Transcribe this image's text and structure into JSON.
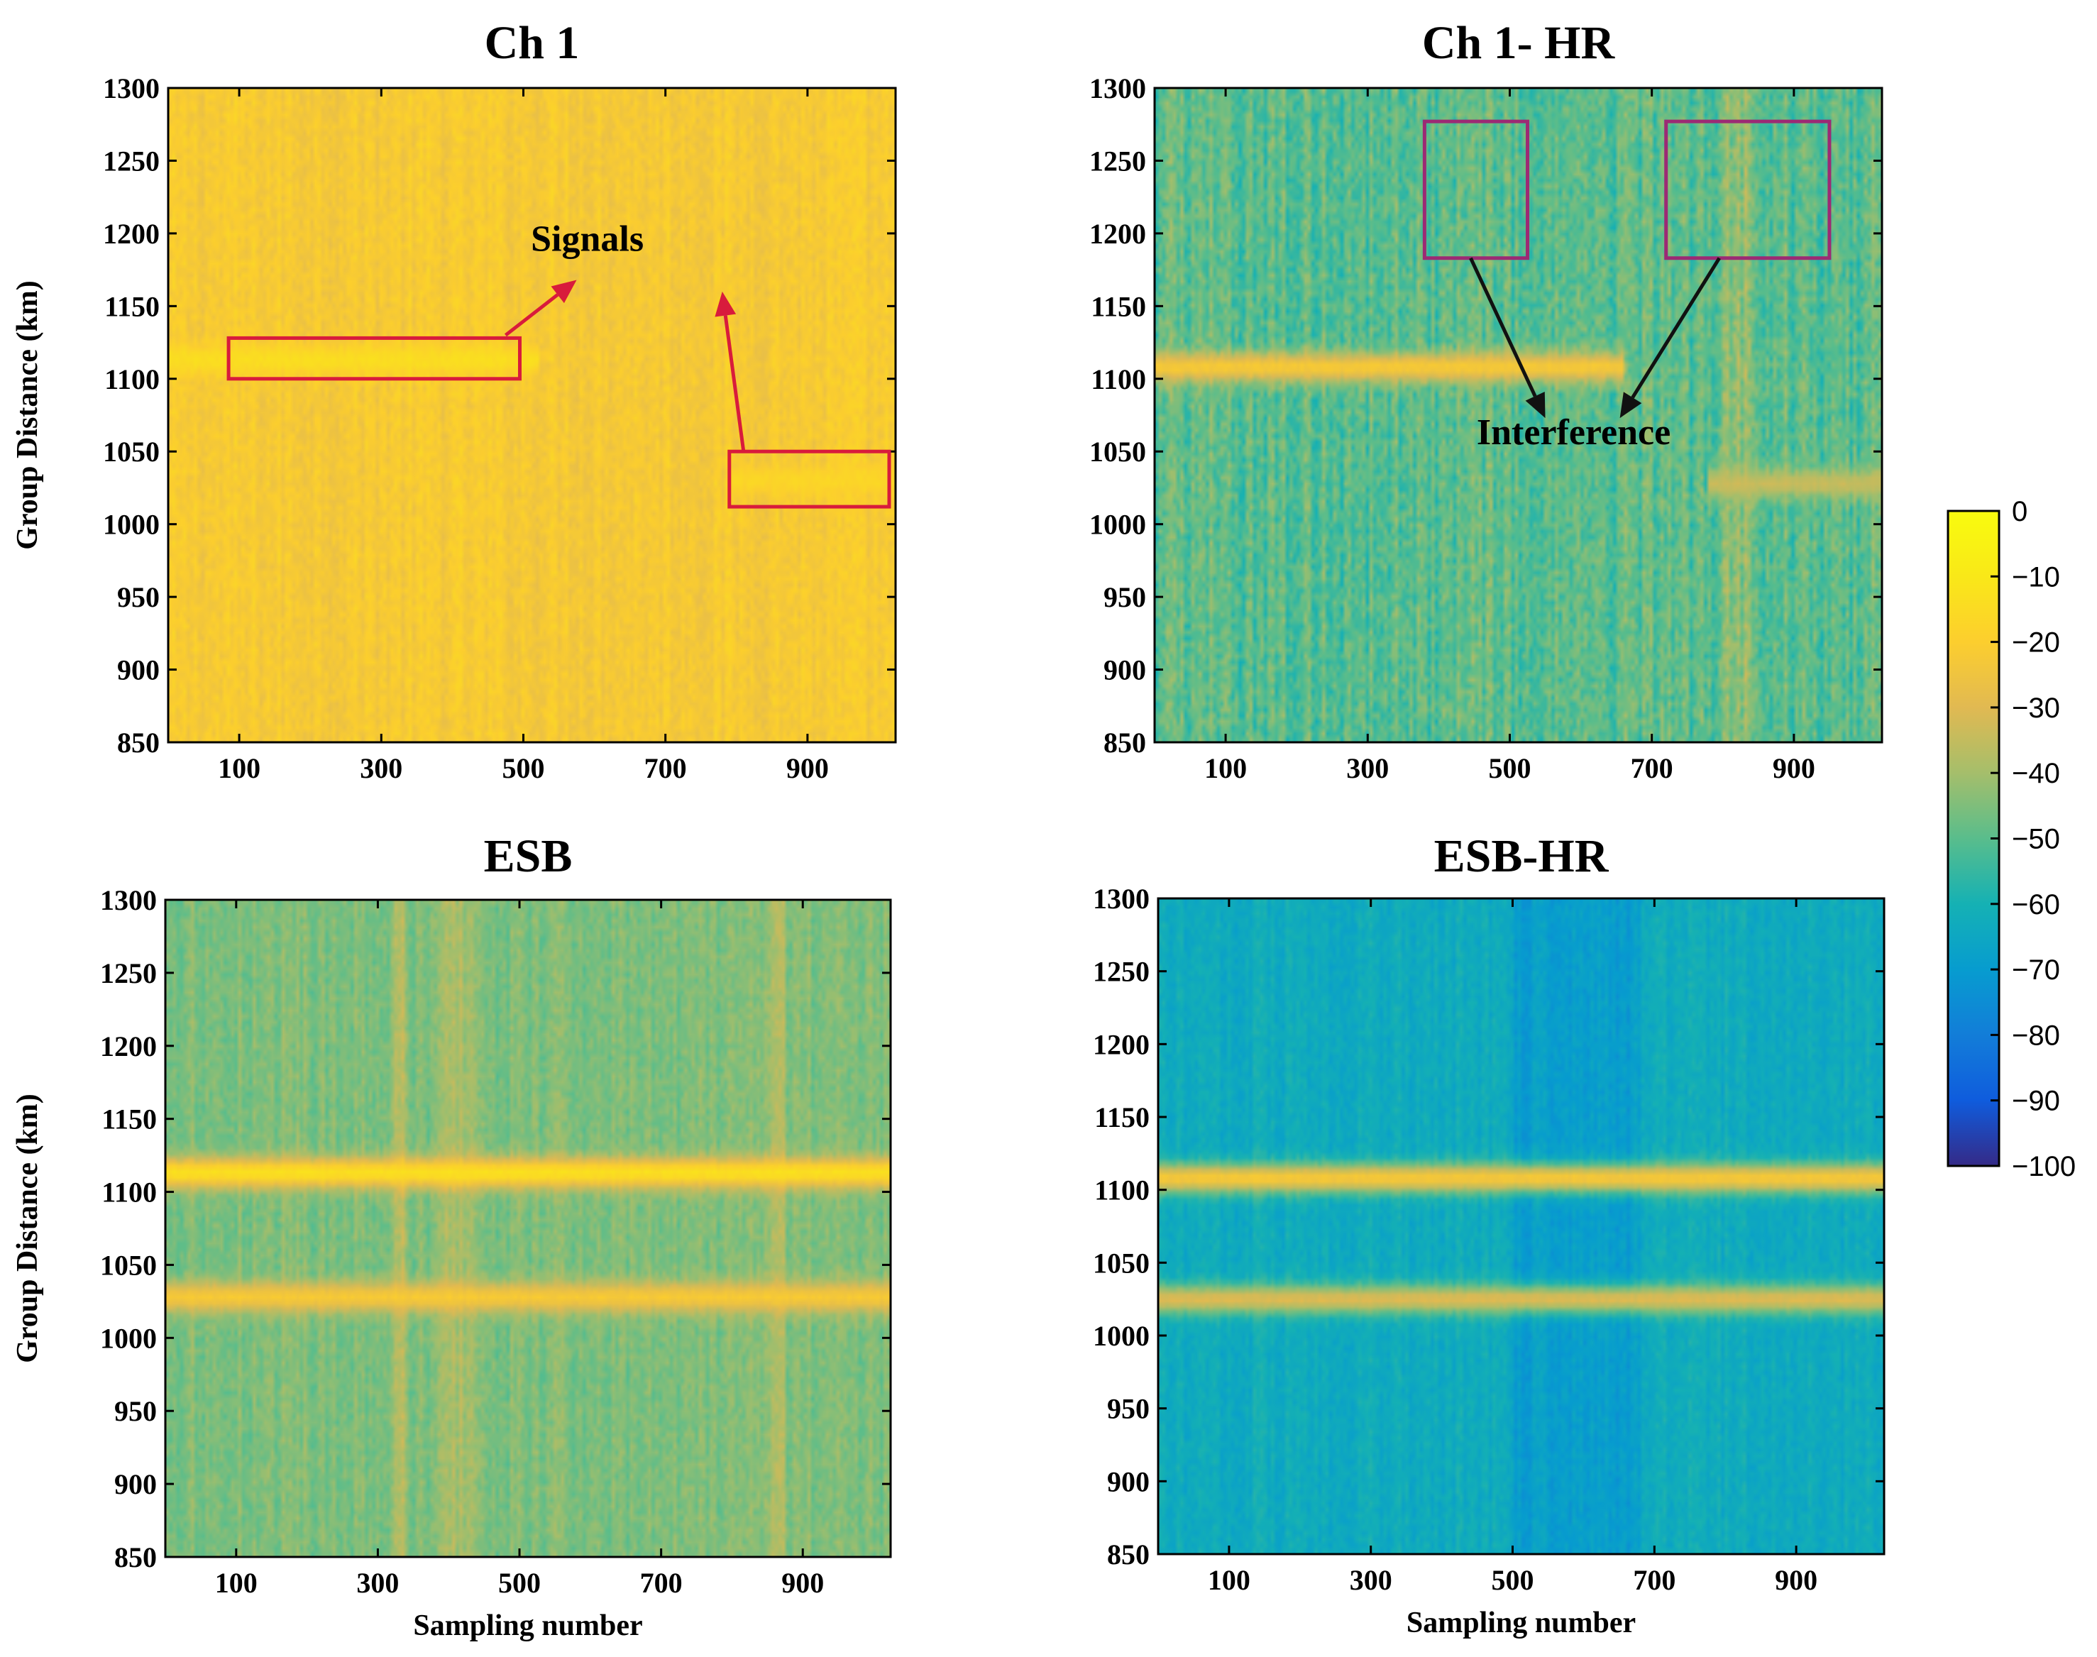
{
  "figure": {
    "colorbar": {
      "colormap": "parula",
      "range": [
        -100,
        0
      ],
      "ticks": [
        "0",
        "−10",
        "−20",
        "−30",
        "−40",
        "−50",
        "−60",
        "−70",
        "−80",
        "−90",
        "−100"
      ],
      "tick_values": [
        0,
        -10,
        -20,
        -30,
        -40,
        -50,
        -60,
        -70,
        -80,
        -90,
        -100
      ]
    }
  },
  "chart_data": [
    {
      "type": "heatmap",
      "id": "ch1",
      "title": "Ch 1",
      "xlabel": "",
      "ylabel": "Group Distance (km)",
      "xlim": [
        0,
        1024
      ],
      "ylim": [
        850,
        1300
      ],
      "xticks": [
        100,
        300,
        500,
        700,
        900
      ],
      "xtick_labels": [
        "100",
        "300",
        "500",
        "700",
        "900"
      ],
      "yticks": [
        850,
        900,
        950,
        1000,
        1050,
        1100,
        1150,
        1200,
        1250,
        1300
      ],
      "ytick_labels": [
        "850",
        "900",
        "950",
        "1000",
        "1050",
        "1100",
        "1150",
        "1200",
        "1250",
        "1300"
      ],
      "background_level": -22,
      "noise_level": 6,
      "signals": [
        {
          "distance": 1113,
          "from": 0,
          "to": 520,
          "level": -14
        },
        {
          "distance": 1030,
          "from": 790,
          "to": 1024,
          "level": -17
        }
      ],
      "boxes": [
        {
          "x0": 85,
          "x1": 495,
          "y0": 1100,
          "y1": 1128,
          "color": "#d81b3c"
        },
        {
          "x0": 790,
          "x1": 1015,
          "y0": 1012,
          "y1": 1050,
          "color": "#d81b3c"
        }
      ],
      "annotations": [
        {
          "text": "Signals",
          "x": 590,
          "y": 1188,
          "color": "#000000"
        }
      ],
      "arrows": [
        {
          "from": [
            475,
            1130
          ],
          "to": [
            575,
            1168
          ],
          "color": "#d81b3c"
        },
        {
          "from": [
            810,
            1050
          ],
          "to": [
            780,
            1160
          ],
          "color": "#d81b3c"
        }
      ]
    },
    {
      "type": "heatmap",
      "id": "ch1hr",
      "title": "Ch 1- HR",
      "xlabel": "",
      "ylabel": "",
      "xlim": [
        0,
        1024
      ],
      "ylim": [
        850,
        1300
      ],
      "xticks": [
        100,
        300,
        500,
        700,
        900
      ],
      "xtick_labels": [
        "100",
        "300",
        "500",
        "700",
        "900"
      ],
      "yticks": [
        850,
        900,
        950,
        1000,
        1050,
        1100,
        1150,
        1200,
        1250,
        1300
      ],
      "ytick_labels": [
        "850",
        "900",
        "950",
        "1000",
        "1050",
        "1100",
        "1150",
        "1200",
        "1250",
        "1300"
      ],
      "background_level": -50,
      "noise_level": 12,
      "signals": [
        {
          "distance": 1108,
          "from": 0,
          "to": 660,
          "level": -22
        },
        {
          "distance": 1028,
          "from": 780,
          "to": 1024,
          "level": -34
        }
      ],
      "boxes": [
        {
          "x0": 380,
          "x1": 525,
          "y0": 1183,
          "y1": 1277,
          "color": "#9c2a74"
        },
        {
          "x0": 720,
          "x1": 950,
          "y0": 1183,
          "y1": 1277,
          "color": "#9c2a74"
        }
      ],
      "annotations": [
        {
          "text": "Interference",
          "x": 590,
          "y": 1055,
          "color": "#000000"
        }
      ],
      "arrows": [
        {
          "from": [
            445,
            1183
          ],
          "to": [
            550,
            1073
          ],
          "color": "#111111"
        },
        {
          "from": [
            795,
            1183
          ],
          "to": [
            655,
            1073
          ],
          "color": "#111111"
        }
      ]
    },
    {
      "type": "heatmap",
      "id": "esb",
      "title": "ESB",
      "xlabel": "Sampling number",
      "ylabel": "Group Distance (km)",
      "xlim": [
        0,
        1024
      ],
      "ylim": [
        850,
        1300
      ],
      "xticks": [
        100,
        300,
        500,
        700,
        900
      ],
      "xtick_labels": [
        "100",
        "300",
        "500",
        "700",
        "900"
      ],
      "yticks": [
        850,
        900,
        950,
        1000,
        1050,
        1100,
        1150,
        1200,
        1250,
        1300
      ],
      "ytick_labels": [
        "850",
        "900",
        "950",
        "1000",
        "1050",
        "1100",
        "1150",
        "1200",
        "1250",
        "1300"
      ],
      "background_level": -45,
      "noise_level": 7,
      "signals": [
        {
          "distance": 1113,
          "from": 0,
          "to": 1024,
          "level": -13
        },
        {
          "distance": 1028,
          "from": 0,
          "to": 1024,
          "level": -22
        }
      ],
      "boxes": [],
      "annotations": [],
      "arrows": []
    },
    {
      "type": "heatmap",
      "id": "esbhr",
      "title": "ESB-HR",
      "xlabel": "Sampling number",
      "ylabel": "",
      "xlim": [
        0,
        1024
      ],
      "ylim": [
        850,
        1300
      ],
      "xticks": [
        100,
        300,
        500,
        700,
        900
      ],
      "xtick_labels": [
        "100",
        "300",
        "500",
        "700",
        "900"
      ],
      "yticks": [
        850,
        900,
        950,
        1000,
        1050,
        1100,
        1150,
        1200,
        1250,
        1300
      ],
      "ytick_labels": [
        "850",
        "900",
        "950",
        "1000",
        "1050",
        "1100",
        "1150",
        "1200",
        "1250",
        "1300"
      ],
      "background_level": -63,
      "noise_level": 6,
      "signals": [
        {
          "distance": 1108,
          "from": 0,
          "to": 1024,
          "level": -22
        },
        {
          "distance": 1025,
          "from": 0,
          "to": 1024,
          "level": -30
        }
      ],
      "boxes": [],
      "annotations": [],
      "arrows": []
    }
  ]
}
